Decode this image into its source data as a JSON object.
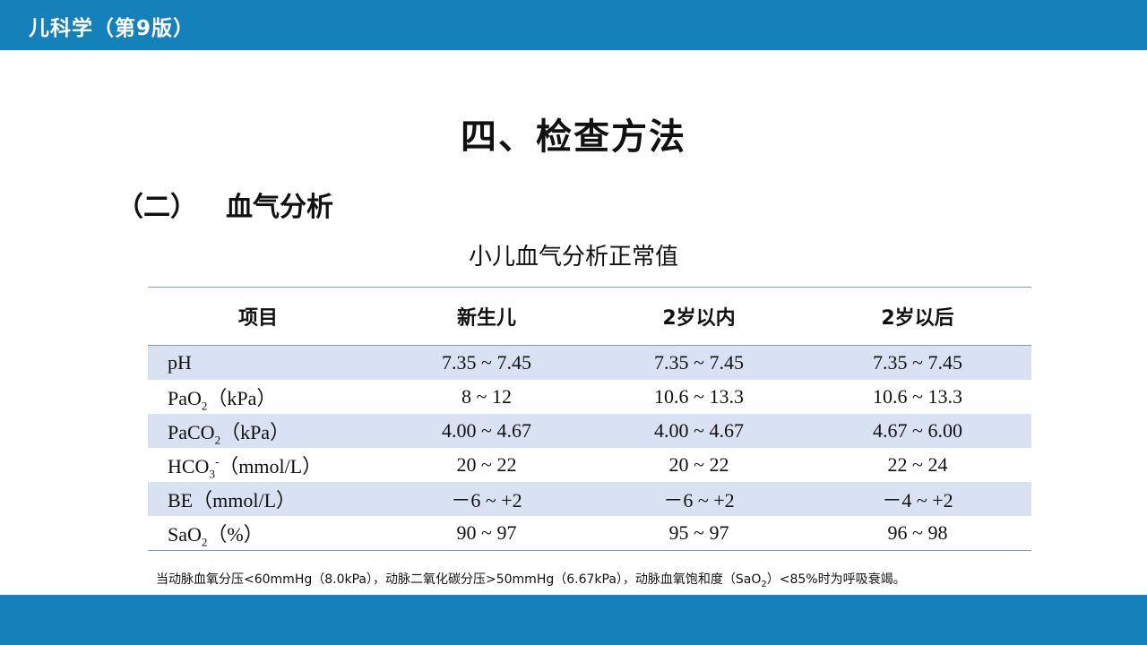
{
  "header": {
    "book_title": "儿科学（第9版）"
  },
  "slide": {
    "title": "四、检查方法",
    "section_number": "（二）",
    "section_title": "血气分析",
    "table_caption": "小儿血气分析正常值"
  },
  "table": {
    "headers": [
      "项目",
      "新生儿",
      "2岁以内",
      "2岁以后"
    ],
    "rows": [
      {
        "item": {
          "main": "pH",
          "sub": "",
          "sup": "",
          "unit": ""
        },
        "values": [
          "7.35 ~ 7.45",
          "7.35 ~ 7.45",
          "7.35 ~ 7.45"
        ]
      },
      {
        "item": {
          "main": "PaO",
          "sub": "2",
          "sup": "",
          "unit": "（kPa）"
        },
        "values": [
          "8 ~ 12",
          "10.6 ~ 13.3",
          "10.6 ~ 13.3"
        ]
      },
      {
        "item": {
          "main": "PaCO",
          "sub": "2",
          "sup": "",
          "unit": "（kPa）"
        },
        "values": [
          "4.00 ~ 4.67",
          "4.00 ~ 4.67",
          "4.67 ~ 6.00"
        ]
      },
      {
        "item": {
          "main": "HCO",
          "sub": "3",
          "sup": "-",
          "unit": "（mmol/L）"
        },
        "values": [
          "20 ~ 22",
          "20 ~ 22",
          "22 ~ 24"
        ]
      },
      {
        "item": {
          "main": "BE",
          "sub": "",
          "sup": "",
          "unit": "（mmol/L）"
        },
        "values": [
          "－6 ~ +2",
          "－6 ~ +2",
          "－4 ~ +2"
        ]
      },
      {
        "item": {
          "main": "SaO",
          "sub": "2",
          "sup": "",
          "unit": "（%）"
        },
        "values": [
          "90 ~ 97",
          "95 ~ 97",
          "96 ~ 98"
        ]
      }
    ]
  },
  "footnote": {
    "part1": "当动脉血氧分压<60mmHg（8.0kPa），动脉二氧化碳分压>50mmHg（6.67kPa），动脉血氧饱和度（SaO",
    "sub": "2",
    "part2": "）<85%时为呼吸衰竭。"
  },
  "colors": {
    "bar": "#1481bb",
    "stripe": "#d9e2f2",
    "rule": "#7d9bd0"
  }
}
